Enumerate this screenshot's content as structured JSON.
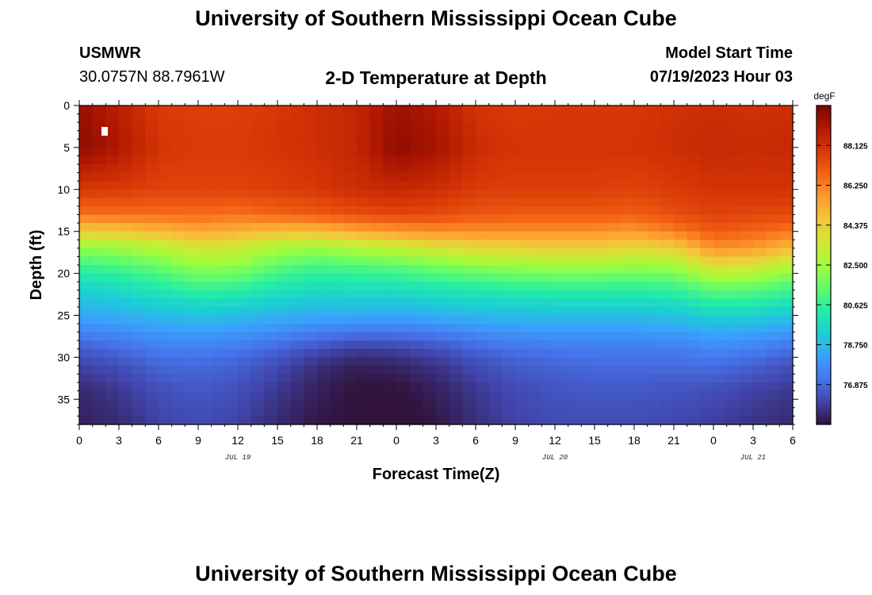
{
  "header": {
    "title": "University of Southern Mississippi Ocean Cube",
    "station": "USMWR",
    "coordinates": "30.0757N  88.7961W",
    "plot_title": "2-D Temperature at Depth",
    "model_start_label": "Model Start Time",
    "model_start_value": "07/19/2023 Hour 03"
  },
  "footer": {
    "title": "University of Southern Mississippi Ocean Cube"
  },
  "colors": {
    "colormap": [
      "#30123b",
      "#4145ab",
      "#4675ed",
      "#39a2fc",
      "#1bcfd4",
      "#24eca6",
      "#61fc6c",
      "#a4fc3b",
      "#d1e834",
      "#f3c63a",
      "#fe9b2d",
      "#f36315",
      "#d93806",
      "#b11901",
      "#7a0402"
    ]
  },
  "chart_data": {
    "type": "heatmap",
    "title": "2-D Temperature at Depth",
    "xlabel": "Forecast Time(Z)",
    "ylabel": "Depth (ft)",
    "x_hours_range": [
      0,
      54
    ],
    "x_tick_labels": [
      "0",
      "3",
      "6",
      "9",
      "12",
      "15",
      "18",
      "21",
      "0",
      "3",
      "6",
      "9",
      "12",
      "15",
      "18",
      "21",
      "0",
      "3",
      "6"
    ],
    "date_labels": [
      {
        "hour": 12,
        "label": "JUL 19"
      },
      {
        "hour": 36,
        "label": "JUL 20"
      },
      {
        "hour": 51,
        "label": "JUL 21"
      }
    ],
    "ylim": [
      38,
      0
    ],
    "y_ticks": [
      0,
      5,
      10,
      15,
      20,
      25,
      30,
      35
    ],
    "colorbar": {
      "unit": "degF",
      "range": [
        75.0,
        90.0
      ],
      "tick_values": [
        88.125,
        86.25,
        84.375,
        82.5,
        80.625,
        78.75,
        76.875
      ],
      "tick_labels": [
        "88.125",
        "86.250",
        "84.375",
        "82.500",
        "80.625",
        "78.750",
        "76.875"
      ]
    },
    "anchors": {
      "hours": [
        0,
        3,
        6,
        9,
        12,
        15,
        18,
        21,
        24,
        27,
        30,
        33,
        36,
        39,
        42,
        45,
        48,
        51,
        54
      ],
      "depths_ft": [
        0,
        5,
        10,
        13,
        15,
        17,
        19,
        21,
        23,
        25,
        27,
        29,
        31,
        34,
        38
      ],
      "temperature_degF": [
        [
          89.4,
          88.7,
          87.8,
          87.7,
          87.7,
          87.9,
          88.2,
          88.5,
          89.3,
          88.9,
          88.0,
          87.8,
          87.9,
          87.9,
          87.9,
          88.1,
          88.2,
          88.1,
          88.2
        ],
        [
          89.6,
          89.0,
          88.0,
          87.8,
          87.8,
          88.0,
          88.2,
          88.5,
          89.6,
          89.2,
          88.3,
          88.0,
          88.0,
          88.0,
          88.0,
          88.2,
          88.4,
          88.3,
          88.4
        ],
        [
          87.9,
          87.8,
          87.6,
          87.6,
          87.6,
          87.7,
          87.9,
          88.2,
          88.4,
          88.2,
          87.8,
          87.7,
          87.7,
          87.7,
          87.6,
          87.8,
          88.0,
          88.0,
          88.0
        ],
        [
          86.5,
          86.6,
          86.6,
          86.6,
          86.5,
          86.8,
          87.0,
          87.3,
          87.5,
          87.4,
          87.1,
          87.0,
          87.0,
          87.0,
          86.9,
          87.3,
          87.6,
          87.5,
          87.4
        ],
        [
          84.4,
          84.6,
          85.0,
          85.4,
          85.2,
          84.8,
          84.9,
          85.4,
          85.7,
          85.9,
          85.9,
          85.9,
          85.9,
          85.9,
          85.7,
          86.3,
          87.0,
          86.8,
          86.4
        ],
        [
          82.2,
          82.4,
          82.9,
          83.6,
          83.4,
          82.6,
          82.4,
          82.8,
          83.2,
          83.7,
          84.1,
          84.3,
          84.4,
          84.4,
          84.1,
          84.4,
          85.9,
          85.7,
          84.9
        ],
        [
          80.8,
          81.1,
          81.6,
          82.3,
          82.2,
          81.4,
          81.0,
          81.2,
          81.4,
          81.8,
          82.2,
          82.4,
          82.6,
          82.6,
          82.4,
          82.5,
          84.0,
          83.8,
          82.9
        ],
        [
          79.8,
          80.1,
          80.6,
          81.2,
          81.1,
          80.4,
          80.1,
          80.2,
          80.3,
          80.6,
          80.8,
          81.0,
          81.1,
          81.1,
          81.0,
          81.2,
          82.1,
          82.0,
          81.4
        ],
        [
          79.0,
          79.3,
          79.7,
          80.0,
          79.9,
          79.5,
          79.3,
          79.4,
          79.3,
          79.5,
          79.7,
          79.8,
          79.9,
          79.9,
          79.9,
          80.0,
          80.7,
          80.6,
          80.2
        ],
        [
          78.3,
          78.5,
          78.8,
          79.0,
          78.9,
          78.6,
          78.4,
          78.4,
          78.3,
          78.5,
          78.7,
          78.8,
          78.9,
          78.9,
          78.9,
          79.0,
          79.5,
          79.4,
          79.1
        ],
        [
          77.5,
          77.7,
          78.0,
          78.1,
          78.0,
          77.7,
          77.4,
          77.2,
          77.2,
          77.4,
          77.7,
          77.9,
          78.0,
          78.0,
          78.0,
          78.1,
          78.4,
          78.3,
          78.0
        ],
        [
          76.6,
          76.9,
          77.3,
          77.4,
          77.2,
          76.8,
          76.3,
          75.9,
          76.0,
          76.3,
          76.8,
          77.1,
          77.2,
          77.3,
          77.3,
          77.3,
          77.6,
          77.4,
          77.0
        ],
        [
          76.0,
          76.3,
          76.8,
          76.9,
          76.7,
          76.2,
          75.6,
          75.3,
          75.4,
          75.7,
          76.2,
          76.6,
          76.8,
          76.9,
          76.9,
          76.9,
          77.0,
          76.7,
          76.3
        ],
        [
          75.5,
          75.8,
          76.3,
          76.5,
          76.3,
          75.8,
          75.3,
          75.0,
          75.0,
          75.3,
          75.8,
          76.2,
          76.4,
          76.5,
          76.5,
          76.4,
          76.3,
          76.0,
          75.8
        ],
        [
          75.3,
          75.5,
          76.0,
          76.2,
          76.0,
          75.5,
          75.1,
          75.0,
          74.9,
          75.1,
          75.6,
          76.0,
          76.2,
          76.2,
          76.2,
          76.1,
          75.9,
          75.7,
          75.5
        ]
      ]
    }
  }
}
